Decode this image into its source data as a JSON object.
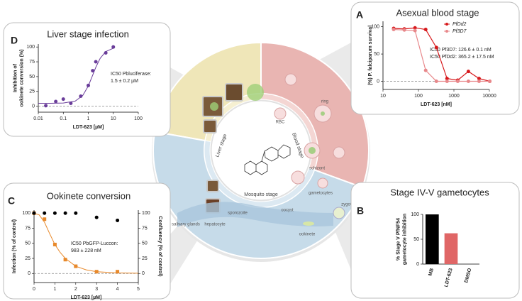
{
  "diagram": {
    "stages": [
      "Liver stage",
      "Blood stage",
      "Mosquito stage"
    ],
    "labels": [
      "hepatocyte",
      "RBC",
      "ring",
      "schizont",
      "gametocytes",
      "zygote",
      "ookinete",
      "oocyst",
      "sporozoite",
      "salivary glands"
    ]
  },
  "chart_data": [
    {
      "type": "scatter",
      "label": "D",
      "title": "Liver stage infection",
      "x_label": "LDT-623 [µM]",
      "y_label": [
        "Inhibition of",
        "ookinete conversion (%)"
      ],
      "annotation": [
        "IC50 Pbluciferase:",
        "1.5 ± 0.2 µM"
      ],
      "xlog": true,
      "xlim": [
        0.01,
        100
      ],
      "xticks": [
        0.01,
        0.1,
        1,
        10,
        100
      ],
      "ylim": [
        -10,
        105
      ],
      "yticks": [
        0,
        25,
        50,
        75,
        100
      ],
      "hline": 0,
      "series": [
        {
          "color": "#6a3d9a",
          "marker": "circle",
          "x": [
            0.02,
            0.05,
            0.1,
            0.2,
            0.5,
            1,
            1.5,
            2,
            5,
            10
          ],
          "values": [
            1,
            8,
            12,
            5,
            17,
            35,
            60,
            75,
            90,
            100
          ],
          "fit": {
            "x": [
              0.01,
              0.03,
              0.1,
              0.3,
              0.6,
              1,
              1.5,
              2,
              3,
              5,
              10
            ],
            "values": [
              5,
              5.04,
              5.4,
              8.7,
              18.1,
              34.2,
              52.5,
              65.8,
              81,
              92.2,
              97.9
            ]
          }
        }
      ]
    },
    {
      "type": "line",
      "label": "A",
      "title": "Asexual blood stage",
      "x_label": "LDT-623 [nM]",
      "y_label": [
        "(%) P. falciparum survival"
      ],
      "annotation": [
        "IC50 Pf3D7: 126.6 ± 0.1 nM",
        "IC50 PfDd2: 365.2 ± 17.5 nM"
      ],
      "xlog": true,
      "xlim": [
        10,
        10000
      ],
      "xticks": [
        10,
        100,
        1000,
        10000
      ],
      "ylim": [
        -15,
        110
      ],
      "yticks": [
        0,
        50,
        100
      ],
      "hline": 0,
      "legend": "upper right",
      "series": [
        {
          "name": "PfDd2",
          "color": "#d7191c",
          "marker": "circle",
          "x": [
            20,
            40,
            80,
            160,
            320,
            640,
            1280,
            2560,
            5120,
            10240
          ],
          "values": [
            97,
            96,
            98,
            95,
            62,
            5,
            2,
            18,
            5,
            0
          ]
        },
        {
          "name": "Pf3D7",
          "color": "#e8888b",
          "marker": "circle",
          "x": [
            20,
            40,
            80,
            160,
            320,
            640,
            1280,
            2560,
            5120,
            10240
          ],
          "values": [
            95,
            94,
            93,
            20,
            0,
            0,
            0,
            0,
            0,
            0
          ]
        }
      ]
    },
    {
      "type": "scatter",
      "label": "C",
      "title": "Ookinete conversion",
      "x_label": "LDT-623 [µM]",
      "y_label": [
        "Infection (% of control)"
      ],
      "y2_label": "Confluency (% of control)",
      "annotation": [
        "IC50 PbGFP-Luccon:",
        "983 ± 228 nM"
      ],
      "xlim": [
        0,
        5
      ],
      "xticks": [
        0,
        1,
        2,
        3,
        4,
        5
      ],
      "ylim": [
        -15,
        105
      ],
      "yticks": [
        0,
        25,
        50,
        75,
        100
      ],
      "y2lim": [
        -15,
        105
      ],
      "y2ticks": [
        0,
        25,
        50,
        75,
        100
      ],
      "hline": 0,
      "series": [
        {
          "color": "#e8892b",
          "marker": "square",
          "x": [
            0,
            0.5,
            1,
            1.5,
            2,
            3,
            4
          ],
          "values": [
            100,
            90,
            48,
            23,
            12,
            3,
            3
          ],
          "fit": {
            "x": [
              0,
              0.25,
              0.5,
              0.75,
              1,
              1.25,
              1.5,
              2,
              2.5,
              3,
              4,
              5
            ],
            "values": [
              100,
              97,
              85,
              66,
              48,
              35,
              25,
              12,
              6,
              3,
              1,
              0.5
            ]
          }
        },
        {
          "color": "#000000",
          "marker": "circle",
          "axis": "y2",
          "x": [
            0,
            0.5,
            1,
            1.5,
            2,
            3,
            4
          ],
          "values": [
            100,
            100,
            100,
            100,
            100,
            93,
            88
          ]
        }
      ]
    },
    {
      "type": "bar",
      "label": "B",
      "title": "Stage IV-V gametocytes",
      "y_label": [
        "% Stage V PfNF54",
        "gametocyte inhibition"
      ],
      "categories": [
        "MB",
        "LDT-623",
        "DMSO"
      ],
      "values": [
        100,
        62,
        0
      ],
      "colors": [
        "#000000",
        "#e06666",
        "#e06666"
      ],
      "ylim": [
        0,
        100
      ],
      "yticks": [
        0,
        50,
        100
      ]
    }
  ]
}
